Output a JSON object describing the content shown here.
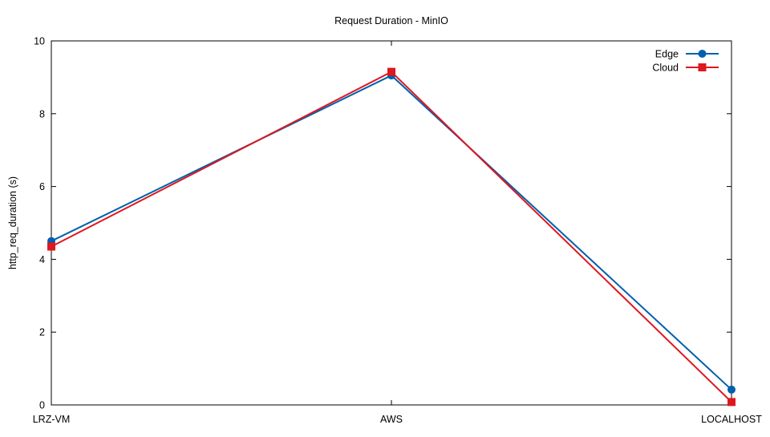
{
  "chart_data": {
    "type": "line",
    "title": "Request Duration - MinIO",
    "xlabel": "",
    "ylabel": "http_req_duration (s)",
    "categories": [
      "LRZ-VM",
      "AWS",
      "LOCALHOST"
    ],
    "ylim": [
      0,
      10
    ],
    "yticks": [
      "0",
      "2",
      "4",
      "6",
      "8",
      "10"
    ],
    "grid": false,
    "legend_position": "top-right",
    "series": [
      {
        "name": "Edge",
        "values": [
          4.5,
          9.05,
          0.42
        ],
        "color": "#0060ad",
        "marker": "circle"
      },
      {
        "name": "Cloud",
        "values": [
          4.35,
          9.15,
          0.08
        ],
        "color": "#dd181f",
        "marker": "square"
      }
    ]
  }
}
